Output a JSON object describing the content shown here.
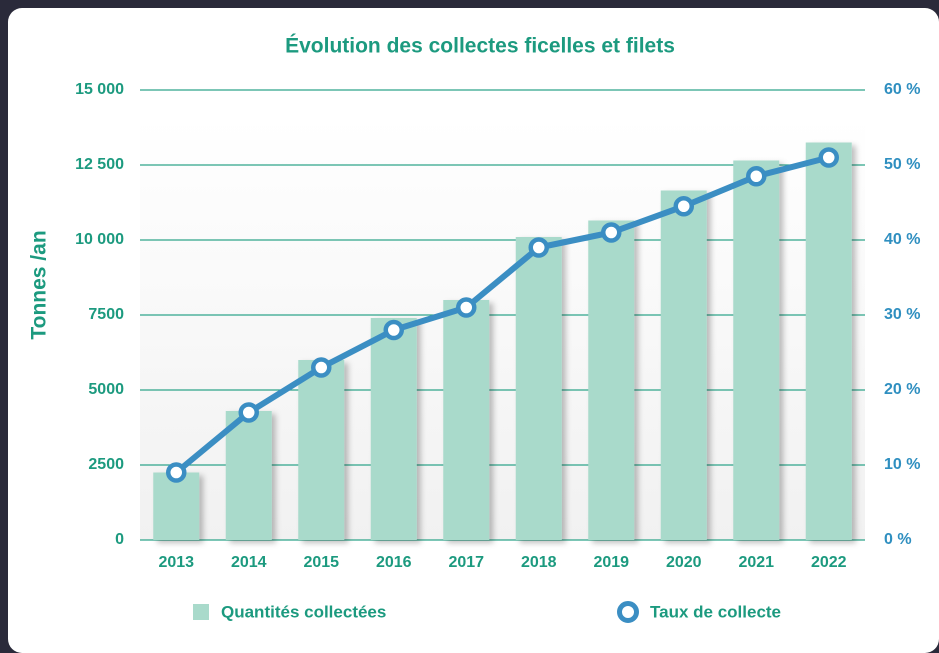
{
  "chart_data": {
    "type": "bar",
    "title": "Évolution des collectes ficelles et filets",
    "y_label": "Tonnes /an",
    "categories": [
      "2013",
      "2014",
      "2015",
      "2016",
      "2017",
      "2018",
      "2019",
      "2020",
      "2021",
      "2022"
    ],
    "series": [
      {
        "name": "Quantités collectées",
        "color": "#a9dacb",
        "values": [
          2250,
          4300,
          6000,
          7400,
          8000,
          10100,
          10650,
          11650,
          12650,
          13250
        ]
      },
      {
        "name": "Taux de collecte",
        "color": "#3b8ec3",
        "type": "line",
        "axis": "y2",
        "values": [
          9,
          17,
          23,
          28,
          31,
          39,
          41,
          44.5,
          48.5,
          51
        ]
      }
    ],
    "ylim": [
      0,
      15000
    ],
    "yticks": [
      0,
      2500,
      5000,
      7500,
      {
        "value": 10000,
        "label": "10 000"
      },
      {
        "value": 12500,
        "label": "12 500"
      },
      {
        "value": 15000,
        "label": "15 000"
      }
    ],
    "y2lim": [
      0,
      60
    ],
    "y2ticks": [
      {
        "value": 0,
        "label": "0 %"
      },
      {
        "value": 10,
        "label": "10 %"
      },
      {
        "value": 20,
        "label": "20 %"
      },
      {
        "value": 30,
        "label": "30 %"
      },
      {
        "value": 40,
        "label": "40 %"
      },
      {
        "value": 50,
        "label": "50 %"
      },
      {
        "value": 60,
        "label": "60 %"
      }
    ],
    "grid": true
  }
}
